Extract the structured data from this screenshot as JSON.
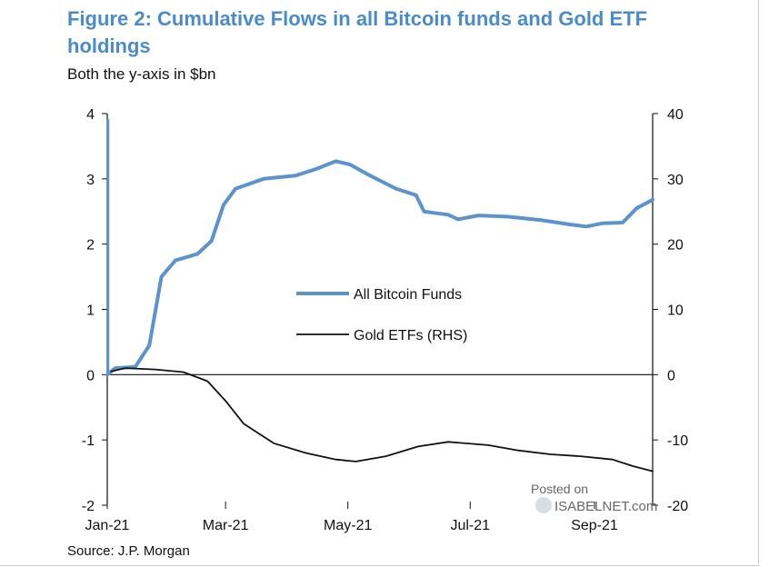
{
  "title": "Figure 2: Cumulative Flows in all Bitcoin funds and Gold ETF holdings",
  "subtitle": "Both the y-axis in $bn",
  "source": "Source: J.P. Morgan",
  "watermark": {
    "line1": "Posted on",
    "line2": "ISABELNET.com"
  },
  "colors": {
    "bitcoin": "#5b93cc",
    "gold": "#111111",
    "title": "#4a8bc9"
  },
  "chart_data": {
    "type": "line",
    "x_tick_labels": [
      "Jan-21",
      "Mar-21",
      "May-21",
      "Jul-21",
      "Sep-21"
    ],
    "x_tick_dates": [
      "2021-01-01",
      "2021-03-01",
      "2021-05-01",
      "2021-07-01",
      "2021-09-01"
    ],
    "xlim": [
      "2021-01-01",
      "2021-09-30"
    ],
    "y_left": {
      "lim": [
        -2,
        4
      ],
      "ticks": [
        4,
        3,
        2,
        1,
        0,
        -1,
        -2
      ]
    },
    "y_right": {
      "lim": [
        -20,
        40
      ],
      "ticks": [
        40,
        30,
        20,
        10,
        0,
        -10,
        -20
      ]
    },
    "legend": {
      "placement": "center",
      "entries": [
        "All Bitcoin Funds",
        "Gold ETFs (RHS)"
      ]
    },
    "series": [
      {
        "name": "All Bitcoin Funds",
        "axis": "left",
        "points": [
          [
            "2021-01-01",
            0.0
          ],
          [
            "2021-01-05",
            0.1
          ],
          [
            "2021-01-15",
            0.12
          ],
          [
            "2021-01-22",
            0.45
          ],
          [
            "2021-01-28",
            1.5
          ],
          [
            "2021-02-04",
            1.75
          ],
          [
            "2021-02-15",
            1.85
          ],
          [
            "2021-02-22",
            2.05
          ],
          [
            "2021-02-28",
            2.6
          ],
          [
            "2021-03-06",
            2.85
          ],
          [
            "2021-03-20",
            3.0
          ],
          [
            "2021-04-05",
            3.05
          ],
          [
            "2021-04-15",
            3.15
          ],
          [
            "2021-04-25",
            3.27
          ],
          [
            "2021-05-02",
            3.22
          ],
          [
            "2021-05-12",
            3.05
          ],
          [
            "2021-05-25",
            2.85
          ],
          [
            "2021-06-04",
            2.75
          ],
          [
            "2021-06-08",
            2.5
          ],
          [
            "2021-06-20",
            2.45
          ],
          [
            "2021-06-25",
            2.38
          ],
          [
            "2021-07-05",
            2.44
          ],
          [
            "2021-07-20",
            2.42
          ],
          [
            "2021-08-05",
            2.37
          ],
          [
            "2021-08-20",
            2.3
          ],
          [
            "2021-08-28",
            2.27
          ],
          [
            "2021-09-05",
            2.32
          ],
          [
            "2021-09-15",
            2.33
          ],
          [
            "2021-09-22",
            2.55
          ],
          [
            "2021-09-30",
            2.68
          ]
        ]
      },
      {
        "name": "Gold ETFs (RHS)",
        "axis": "right",
        "points": [
          [
            "2021-01-03",
            0.5
          ],
          [
            "2021-01-10",
            1.0
          ],
          [
            "2021-01-25",
            0.8
          ],
          [
            "2021-02-08",
            0.4
          ],
          [
            "2021-02-20",
            -1.0
          ],
          [
            "2021-03-01",
            -4.0
          ],
          [
            "2021-03-10",
            -7.5
          ],
          [
            "2021-03-25",
            -10.5
          ],
          [
            "2021-04-10",
            -12.0
          ],
          [
            "2021-04-25",
            -13.0
          ],
          [
            "2021-05-05",
            -13.3
          ],
          [
            "2021-05-20",
            -12.5
          ],
          [
            "2021-06-05",
            -11.0
          ],
          [
            "2021-06-20",
            -10.3
          ],
          [
            "2021-07-10",
            -10.8
          ],
          [
            "2021-07-25",
            -11.6
          ],
          [
            "2021-08-10",
            -12.2
          ],
          [
            "2021-08-25",
            -12.5
          ],
          [
            "2021-09-10",
            -13.0
          ],
          [
            "2021-09-20",
            -14.0
          ],
          [
            "2021-09-30",
            -14.8
          ]
        ]
      }
    ]
  }
}
